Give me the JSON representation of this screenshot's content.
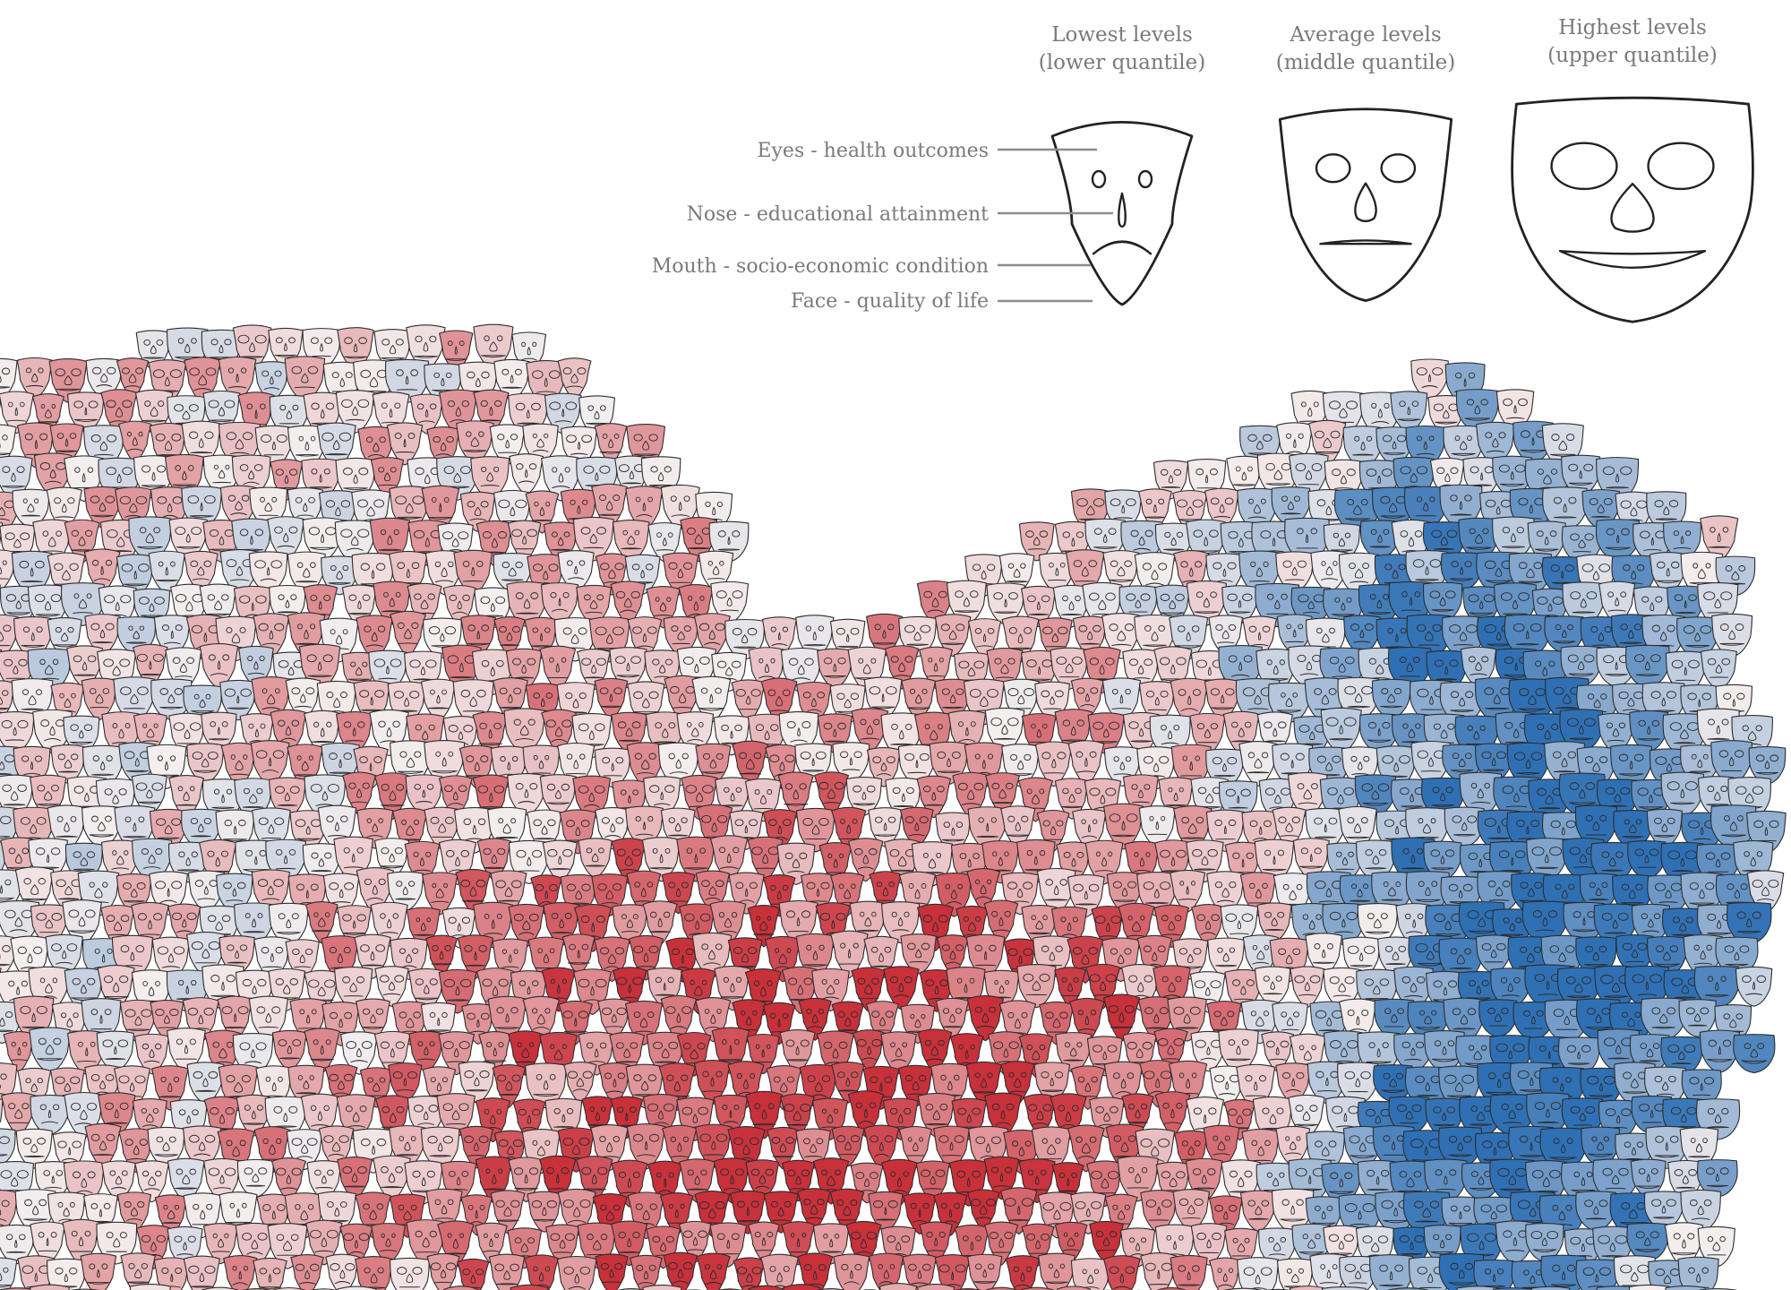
{
  "chart_data": {
    "type": "scatter",
    "subtype": "chernoff-faces",
    "legend": {
      "levels": [
        {
          "title": "Lowest levels",
          "subtitle": "(lower quantile)",
          "level": 0
        },
        {
          "title": "Average levels",
          "subtitle": "(middle quantile)",
          "level": 0.5
        },
        {
          "title": "Highest levels",
          "subtitle": "(upper quantile)",
          "level": 1
        }
      ],
      "features": [
        {
          "label": "Eyes - health outcomes"
        },
        {
          "label": "Nose - educational attainment"
        },
        {
          "label": "Mouth - socio-economic condition"
        },
        {
          "label": "Face - quality of life"
        }
      ]
    },
    "color_scale": {
      "low": "#c8303a",
      "mid": "#f4eeee",
      "high": "#2f70b4",
      "outline": "#2d2d2d",
      "leader_line": "#8c8c8c"
    },
    "map_region": {
      "description_free": true,
      "value_range": [
        0,
        1
      ]
    },
    "title": "",
    "xlabel": "",
    "ylabel": ""
  }
}
